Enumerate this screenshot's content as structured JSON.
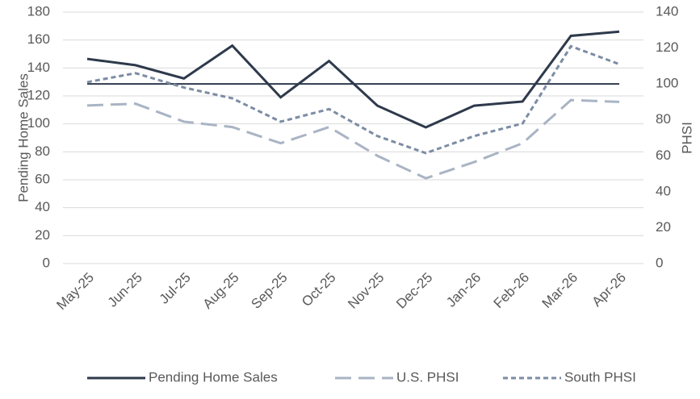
{
  "chart_data": {
    "type": "line",
    "y_label": "Pending Home Sales",
    "y2_label": "PHSI",
    "categories": [
      "May-25",
      "Jun-25",
      "Jul-25",
      "Aug-25",
      "Sep-25",
      "Oct-25",
      "Nov-25",
      "Dec-25",
      "Jan-26",
      "Feb-26",
      "Mar-26",
      "Apr-26"
    ],
    "series": [
      {
        "name": "Pending Home Sales",
        "color": "#2e3a4b",
        "dash": "solid",
        "axis": "y",
        "values": [
          146.5,
          142,
          132.5,
          156,
          119,
          145,
          113,
          97.5,
          113,
          116,
          163,
          166
        ]
      },
      {
        "name": "U.S. PHSI",
        "color": "#a9b4c4",
        "dash": "long",
        "axis": "y2",
        "values": [
          88,
          89,
          79,
          76,
          67,
          76,
          60,
          47.5,
          56.5,
          67,
          91,
          90
        ]
      },
      {
        "name": "South PHSI",
        "color": "#7c8ca3",
        "dash": "short",
        "axis": "y2",
        "values": [
          101,
          106,
          98,
          92,
          79,
          86,
          71,
          61.5,
          71,
          78,
          121,
          111
        ]
      }
    ],
    "reference_line": {
      "axis": "y2",
      "value": 100,
      "color": "#2e3a4b"
    },
    "ylim": [
      0,
      180
    ],
    "yticks": [
      0,
      20,
      40,
      60,
      80,
      100,
      120,
      140,
      160,
      180
    ],
    "y2lim": [
      0,
      140
    ],
    "y2ticks": [
      0,
      20,
      40,
      60,
      80,
      100,
      120,
      140
    ],
    "grid": true,
    "legend": "bottom"
  }
}
